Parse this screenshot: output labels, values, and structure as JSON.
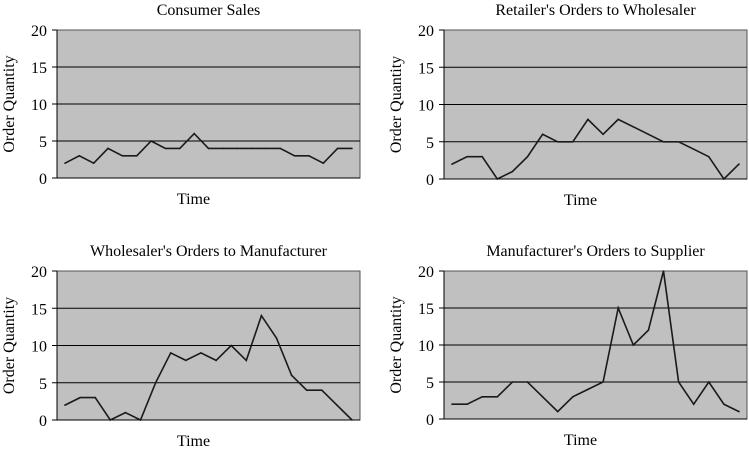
{
  "chart_data": [
    {
      "type": "line",
      "title": "Consumer Sales",
      "xlabel": "Time",
      "ylabel": "Order Quantity",
      "ylim": [
        0,
        20
      ],
      "yticks": [
        0,
        5,
        10,
        15,
        20
      ],
      "grid": true,
      "plot_background": "#c0c0c0",
      "line_color": "#1a1a1a",
      "values": [
        2,
        3,
        2,
        4,
        3,
        3,
        5,
        4,
        4,
        6,
        4,
        4,
        4,
        4,
        4,
        4,
        3,
        3,
        2,
        4,
        4
      ]
    },
    {
      "type": "line",
      "title": "Retailer's Orders to Wholesaler",
      "xlabel": "Time",
      "ylabel": "Order Quantity",
      "ylim": [
        0,
        20
      ],
      "yticks": [
        0,
        5,
        10,
        15,
        20
      ],
      "grid": true,
      "plot_background": "#c0c0c0",
      "line_color": "#1a1a1a",
      "values": [
        2,
        3,
        3,
        0,
        1,
        3,
        6,
        5,
        5,
        8,
        6,
        8,
        7,
        6,
        5,
        5,
        4,
        3,
        0,
        2
      ]
    },
    {
      "type": "line",
      "title": "Wholesaler's Orders to Manufacturer",
      "xlabel": "Time",
      "ylabel": "Order Quantity",
      "ylim": [
        0,
        20
      ],
      "yticks": [
        0,
        5,
        10,
        15,
        20
      ],
      "grid": true,
      "plot_background": "#c0c0c0",
      "line_color": "#1a1a1a",
      "values": [
        2,
        3,
        3,
        0,
        1,
        0,
        5,
        9,
        8,
        9,
        8,
        10,
        8,
        14,
        11,
        6,
        4,
        4,
        2,
        0
      ]
    },
    {
      "type": "line",
      "title": "Manufacturer's Orders to Supplier",
      "xlabel": "Time",
      "ylabel": "Order Quantity",
      "ylim": [
        0,
        20
      ],
      "yticks": [
        0,
        5,
        10,
        15,
        20
      ],
      "grid": true,
      "plot_background": "#c0c0c0",
      "line_color": "#1a1a1a",
      "values": [
        2,
        2,
        3,
        3,
        5,
        5,
        3,
        1,
        3,
        4,
        5,
        15,
        10,
        12,
        20,
        5,
        2,
        5,
        2,
        1
      ]
    }
  ]
}
